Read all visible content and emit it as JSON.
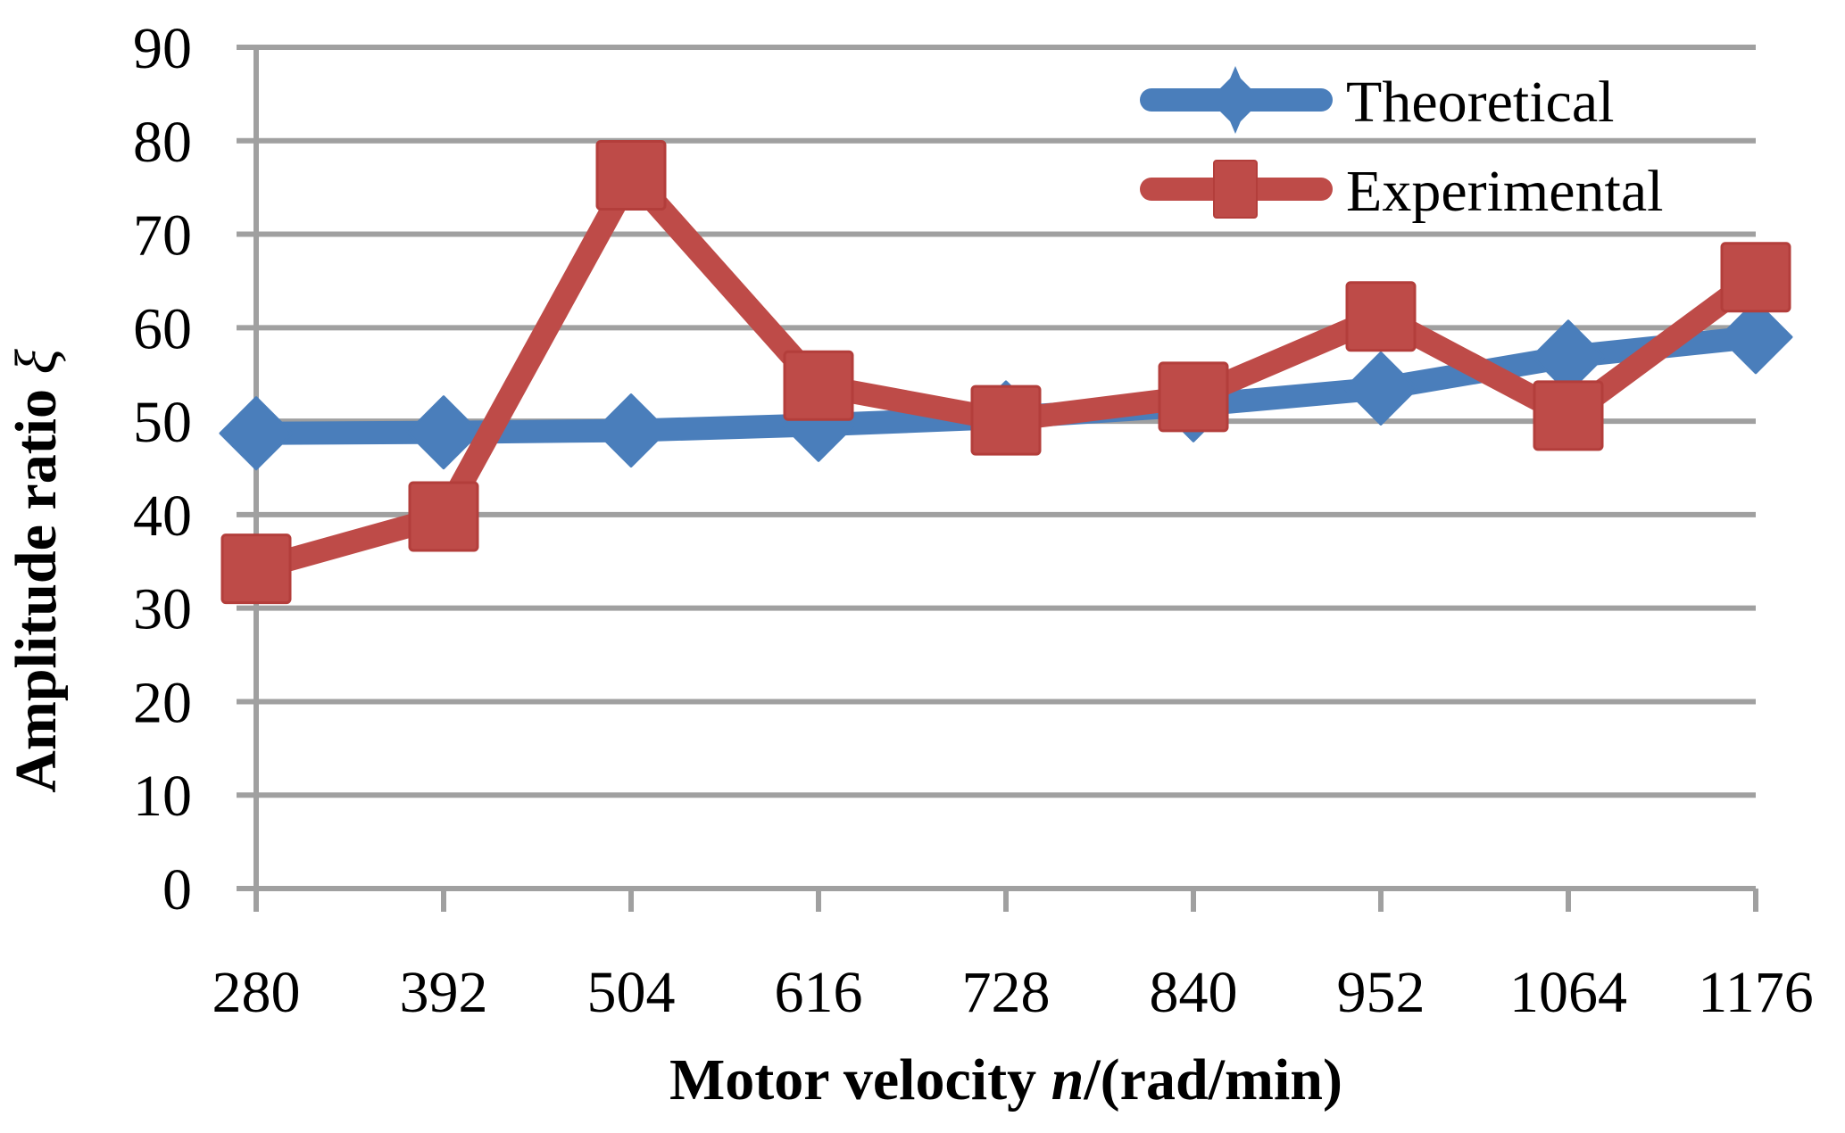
{
  "chart_data": {
    "type": "line",
    "title": "",
    "xlabel": "Motor velocity ",
    "xlabel_var": "n",
    "xlabel_unit": "/(rad/min)",
    "ylabel": "Amplitude ratio ",
    "ylabel_var": "ξ",
    "categories": [
      "280",
      "392",
      "504",
      "616",
      "728",
      "840",
      "952",
      "1064",
      "1176"
    ],
    "yticks": [
      "0",
      "10",
      "20",
      "30",
      "40",
      "50",
      "60",
      "70",
      "80",
      "90"
    ],
    "ylim": [
      0,
      90
    ],
    "grid": "horizontal",
    "legend_position": "top-right",
    "series": [
      {
        "name": "Theoretical",
        "marker": "diamond",
        "color": "#4A7EBB",
        "values": [
          48.7,
          48.8,
          49.0,
          49.6,
          50.4,
          51.7,
          53.5,
          56.9,
          59.0
        ]
      },
      {
        "name": "Experimental",
        "marker": "square",
        "color": "#BE4B48",
        "values": [
          34.2,
          39.8,
          76.3,
          53.8,
          50.1,
          52.6,
          61.2,
          50.6,
          65.4
        ]
      }
    ],
    "grid_color": "#A0A0A0"
  }
}
